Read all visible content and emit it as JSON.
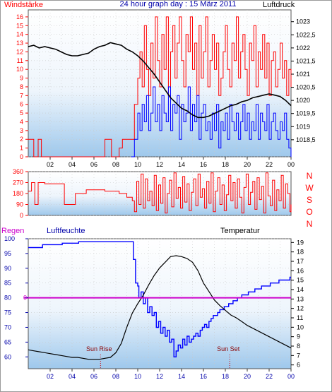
{
  "colors": {
    "wind": "#ff0000",
    "gust": "#ff0000",
    "direction": "#ff0000",
    "pressure": "#000000",
    "humidity": "#0000ff",
    "temperature": "#000000",
    "rain": "#cc00cc",
    "axis_blue": "#0000aa",
    "grid": "#c8c8c8",
    "bg_top": "#ffffff",
    "bg_bottom": "#9ec8ec",
    "label_brown": "#8b0000"
  },
  "chart_data": [
    {
      "type": "line",
      "title": "24 hour graph day : 15 März 2011",
      "left_label": "Windstärke",
      "right_label": "Luftdruck",
      "x_range": [
        0,
        24
      ],
      "x_ticks": [
        "02",
        "04",
        "06",
        "08",
        "10",
        "12",
        "14",
        "16",
        "18",
        "20",
        "22",
        "00"
      ],
      "y_left_range": [
        0,
        16.8
      ],
      "y_left_ticks": [
        "0",
        "1",
        "2",
        "3",
        "4",
        "5",
        "6",
        "7",
        "8",
        "9",
        "10",
        "11",
        "12",
        "13",
        "14",
        "15",
        "16"
      ],
      "y_right_range": [
        1017.85,
        1023.45
      ],
      "y_right_ticks": [
        "1018,5",
        "1019",
        "1019,5",
        "1020",
        "1020,5",
        "1021",
        "1021,5",
        "1022",
        "1022,5",
        "1023"
      ],
      "grid": true,
      "series": [
        {
          "name": "",
          "axis": "left",
          "style": "gust",
          "x": [
            0.0,
            0.5,
            0.9,
            1.2,
            3.0,
            4.0,
            4.9,
            5.5,
            6.3,
            7.0,
            7.6,
            8.3,
            8.6,
            9.3,
            9.7,
            10.0,
            10.2,
            10.4,
            10.6,
            10.8,
            11.0,
            11.2,
            11.4,
            11.6,
            11.8,
            12.0,
            12.2,
            12.4,
            12.6,
            12.8,
            13.0,
            13.2,
            13.4,
            13.6,
            13.8,
            14.0,
            14.2,
            14.4,
            14.6,
            14.8,
            15.0,
            15.2,
            15.4,
            15.6,
            15.8,
            16.0,
            16.2,
            16.4,
            16.6,
            16.8,
            17.0,
            17.2,
            17.4,
            17.6,
            17.8,
            18.0,
            18.2,
            18.4,
            18.6,
            18.8,
            19.0,
            19.2,
            19.4,
            19.6,
            19.8,
            20.0,
            20.2,
            20.4,
            20.6,
            20.8,
            21.0,
            21.2,
            21.4,
            21.6,
            21.8,
            22.0,
            22.2,
            22.4,
            22.6,
            22.8,
            23.0,
            23.2,
            23.4,
            23.6,
            23.8,
            24.0
          ],
          "y": [
            2,
            0,
            2,
            0,
            0,
            0,
            0,
            0,
            0,
            2,
            0,
            1,
            2,
            2,
            6,
            9,
            12,
            8,
            15,
            10,
            7,
            13,
            9,
            16,
            11,
            8,
            14,
            10,
            16,
            7,
            12,
            15,
            9,
            13,
            16,
            11,
            8,
            14,
            12,
            16,
            10,
            13,
            7,
            15,
            9,
            12,
            16,
            8,
            11,
            14,
            10,
            13,
            7,
            9,
            12,
            15,
            10,
            8,
            13,
            11,
            16,
            9,
            12,
            14,
            10,
            7,
            13,
            11,
            15,
            8,
            12,
            10,
            14,
            9,
            13,
            7,
            11,
            12,
            8,
            10,
            13,
            9,
            11,
            7,
            10,
            8
          ]
        },
        {
          "name": "",
          "axis": "left",
          "style": "wind",
          "x": [
            9.4,
            9.7,
            10.0,
            10.2,
            10.4,
            10.6,
            10.8,
            11.0,
            11.2,
            11.4,
            11.6,
            11.8,
            12.0,
            12.2,
            12.4,
            12.6,
            12.8,
            13.0,
            13.2,
            13.4,
            13.6,
            13.8,
            14.0,
            14.2,
            14.4,
            14.6,
            14.8,
            15.0,
            15.2,
            15.4,
            15.6,
            15.8,
            16.0,
            16.2,
            16.4,
            16.6,
            16.8,
            17.0,
            17.2,
            17.4,
            17.6,
            17.8,
            18.0,
            18.2,
            18.4,
            18.6,
            18.8,
            19.0,
            19.2,
            19.4,
            19.6,
            19.8,
            20.0,
            20.2,
            20.4,
            20.6,
            20.8,
            21.0,
            21.2,
            21.4,
            21.6,
            21.8,
            22.0,
            22.2,
            22.4,
            22.6,
            22.8,
            23.0,
            23.2,
            23.4,
            23.6,
            23.8,
            24.0
          ],
          "y": [
            0,
            2,
            5,
            3,
            6,
            4,
            7,
            3,
            5,
            8,
            4,
            6,
            3,
            7,
            5,
            4,
            8,
            3,
            6,
            5,
            7,
            2,
            6,
            4,
            5,
            8,
            3,
            6,
            4,
            7,
            2,
            5,
            6,
            3,
            4,
            2,
            5,
            3,
            6,
            1,
            4,
            3,
            5,
            2,
            6,
            4,
            3,
            5,
            2,
            4,
            6,
            3,
            5,
            2,
            4,
            3,
            6,
            2,
            5,
            4,
            3,
            6,
            2,
            4,
            5,
            3,
            2,
            4,
            3,
            5,
            2,
            1,
            0
          ]
        },
        {
          "name": "",
          "axis": "right",
          "style": "pressure",
          "x": [
            0.0,
            0.5,
            1.0,
            1.5,
            2.0,
            2.5,
            3.0,
            3.5,
            4.0,
            4.5,
            5.0,
            5.5,
            6.0,
            6.5,
            7.0,
            7.5,
            8.0,
            8.5,
            9.0,
            9.5,
            10.0,
            10.5,
            11.0,
            11.5,
            12.0,
            12.5,
            13.0,
            13.5,
            14.0,
            14.5,
            15.0,
            15.5,
            16.0,
            16.5,
            17.0,
            17.5,
            18.0,
            18.5,
            19.0,
            19.5,
            20.0,
            20.5,
            21.0,
            21.5,
            22.0,
            22.5,
            23.0,
            23.5,
            24.0
          ],
          "y": [
            1022.05,
            1022.1,
            1022.0,
            1022.05,
            1022.0,
            1021.95,
            1021.85,
            1021.75,
            1021.7,
            1021.7,
            1021.75,
            1021.8,
            1021.95,
            1022.05,
            1022.1,
            1022.2,
            1022.15,
            1022.1,
            1021.95,
            1021.85,
            1021.7,
            1021.5,
            1021.25,
            1021.0,
            1020.7,
            1020.4,
            1020.1,
            1019.9,
            1019.7,
            1019.6,
            1019.45,
            1019.35,
            1019.35,
            1019.4,
            1019.5,
            1019.6,
            1019.7,
            1019.8,
            1019.85,
            1019.95,
            1020.0,
            1020.1,
            1020.15,
            1020.2,
            1020.25,
            1020.2,
            1020.15,
            1020.0,
            1019.8
          ]
        }
      ]
    },
    {
      "type": "line",
      "x_range": [
        0,
        24
      ],
      "y_range": [
        0,
        360
      ],
      "y_ticks": [
        "0",
        "90",
        "180",
        "270",
        "360"
      ],
      "y_tick_values": [
        0,
        90,
        180,
        270,
        360
      ],
      "right_labels": [
        "N",
        "W",
        "S",
        "O",
        "N"
      ],
      "grid": true,
      "series": [
        {
          "name": "",
          "x": [
            0.0,
            0.3,
            0.6,
            0.9,
            1.2,
            1.5,
            2.0,
            2.5,
            3.0,
            3.3,
            3.6,
            4.0,
            4.3,
            4.9,
            5.3,
            6.0,
            6.5,
            7.0,
            7.6,
            8.3,
            8.6,
            9.0,
            9.3,
            9.5,
            9.7,
            9.9,
            10.1,
            10.3,
            10.5,
            10.7,
            10.9,
            11.1,
            11.3,
            11.5,
            11.7,
            11.9,
            12.1,
            12.3,
            12.5,
            12.7,
            12.9,
            13.1,
            13.3,
            13.5,
            13.7,
            13.9,
            14.1,
            14.3,
            14.5,
            14.7,
            14.9,
            15.1,
            15.3,
            15.5,
            15.7,
            15.9,
            16.1,
            16.3,
            16.5,
            16.7,
            16.9,
            17.1,
            17.3,
            17.5,
            17.7,
            17.9,
            18.1,
            18.3,
            18.5,
            18.7,
            18.9,
            19.1,
            19.3,
            19.5,
            19.7,
            19.9,
            20.1,
            20.3,
            20.5,
            20.7,
            20.9,
            21.1,
            21.3,
            21.5,
            21.7,
            21.9,
            22.1,
            22.3,
            22.5,
            22.7,
            22.9,
            23.1,
            23.3,
            23.5,
            23.7,
            23.9,
            24.0
          ],
          "y": [
            200,
            270,
            90,
            270,
            270,
            260,
            260,
            260,
            260,
            90,
            90,
            90,
            180,
            180,
            210,
            210,
            210,
            200,
            200,
            180,
            180,
            150,
            150,
            120,
            30,
            280,
            90,
            340,
            60,
            300,
            120,
            200,
            80,
            330,
            40,
            250,
            100,
            310,
            20,
            180,
            290,
            70,
            350,
            140,
            230,
            60,
            320,
            110,
            260,
            40,
            190,
            300,
            80,
            340,
            150,
            220,
            60,
            280,
            100,
            350,
            30,
            200,
            310,
            90,
            250,
            40,
            170,
            330,
            120,
            270,
            60,
            300,
            150,
            20,
            230,
            340,
            90,
            190,
            280,
            50,
            310,
            130,
            240,
            20,
            350,
            160,
            80,
            290,
            40,
            210,
            120,
            330,
            60,
            260,
            180,
            30,
            90
          ]
        }
      ]
    },
    {
      "type": "line",
      "left_label_rain": "Regen",
      "left_label_humidity": "Luftfeuchte",
      "right_label": "Temperatur",
      "x_range": [
        0,
        24
      ],
      "y_left_range": [
        56,
        100
      ],
      "y_left_ticks": [
        "60",
        "65",
        "70",
        "75",
        "80",
        "85",
        "90",
        "95",
        "100"
      ],
      "y_left_tick_values": [
        60,
        65,
        70,
        75,
        80,
        85,
        90,
        95,
        100
      ],
      "y_right_range": [
        5.6,
        19.4
      ],
      "y_right_ticks": [
        "6",
        "7",
        "8",
        "9",
        "10",
        "11",
        "12",
        "13",
        "14",
        "15",
        "16",
        "17",
        "18",
        "19"
      ],
      "rain_value_label": "0",
      "annotations": [
        {
          "text": "Sun Rise",
          "x": 6.6
        },
        {
          "text": "Sun Set",
          "x": 18.4
        }
      ],
      "grid": true,
      "series": [
        {
          "name": "",
          "axis": "left",
          "style": "humidity",
          "x": [
            0.0,
            1.2,
            1.3,
            3.0,
            3.1,
            4.5,
            4.6,
            5.0,
            5.1,
            9.4,
            9.6,
            9.8,
            10.0,
            10.1,
            10.3,
            10.5,
            10.7,
            10.9,
            11.1,
            11.3,
            11.5,
            11.7,
            11.9,
            12.1,
            12.3,
            12.5,
            12.7,
            12.9,
            13.1,
            13.3,
            13.5,
            13.7,
            13.9,
            14.1,
            14.3,
            14.5,
            14.7,
            14.9,
            15.1,
            15.3,
            15.5,
            15.7,
            15.9,
            16.1,
            16.3,
            16.5,
            16.7,
            16.9,
            17.1,
            17.3,
            17.5,
            17.7,
            17.9,
            18.1,
            18.3,
            18.5,
            18.7,
            18.9,
            19.1,
            19.3,
            19.5,
            19.7,
            19.9,
            20.1,
            20.3,
            20.5,
            20.7,
            20.9,
            21.1,
            21.3,
            21.5,
            21.7,
            21.9,
            22.1,
            22.3,
            22.5,
            22.7,
            22.9,
            23.1,
            23.3,
            23.5,
            23.7,
            23.9,
            24.0
          ],
          "y": [
            97,
            97,
            98,
            98,
            98.5,
            98.5,
            99,
            99,
            99,
            99,
            93,
            85,
            84,
            80,
            82,
            78,
            80,
            75,
            77,
            74,
            75,
            70,
            72,
            68,
            70,
            67,
            69,
            65,
            66,
            60,
            62,
            64,
            63,
            66,
            64,
            67,
            65,
            66,
            67,
            68,
            67,
            69,
            70,
            71,
            70,
            72,
            73,
            74,
            74,
            75,
            76,
            76,
            77,
            77,
            78,
            78,
            79,
            79,
            80,
            80,
            81,
            81,
            81,
            82,
            82,
            82,
            83,
            83,
            83,
            84,
            84,
            84,
            84,
            85,
            85,
            85,
            85,
            86,
            86,
            86,
            86,
            86,
            87,
            87
          ]
        },
        {
          "name": "",
          "axis": "right",
          "style": "temperature",
          "x": [
            0.0,
            0.5,
            1.0,
            1.5,
            2.0,
            2.5,
            3.0,
            3.5,
            4.0,
            4.5,
            5.0,
            5.5,
            6.0,
            6.5,
            7.0,
            7.5,
            8.0,
            8.5,
            9.0,
            9.5,
            10.0,
            10.5,
            11.0,
            11.5,
            12.0,
            12.5,
            13.0,
            13.5,
            14.0,
            14.5,
            15.0,
            15.5,
            16.0,
            16.5,
            17.0,
            17.5,
            18.0,
            18.5,
            19.0,
            19.5,
            20.0,
            20.5,
            21.0,
            21.5,
            22.0,
            22.5,
            23.0,
            23.5,
            24.0
          ],
          "y": [
            7.6,
            7.5,
            7.4,
            7.3,
            7.2,
            7.1,
            7.0,
            6.9,
            6.8,
            6.8,
            6.7,
            6.6,
            6.6,
            6.6,
            6.7,
            6.8,
            7.3,
            8.3,
            10.0,
            11.5,
            12.5,
            13.4,
            14.5,
            15.5,
            16.3,
            16.9,
            17.5,
            17.6,
            17.5,
            17.3,
            16.9,
            16.0,
            14.7,
            13.8,
            12.9,
            12.3,
            11.8,
            11.3,
            11.0,
            10.6,
            10.2,
            9.9,
            9.6,
            9.3,
            9.0,
            8.7,
            8.4,
            8.1,
            7.8
          ]
        },
        {
          "name": "",
          "axis": "left",
          "style": "rain",
          "x": [
            0,
            24
          ],
          "y": [
            80,
            80
          ]
        }
      ]
    }
  ]
}
